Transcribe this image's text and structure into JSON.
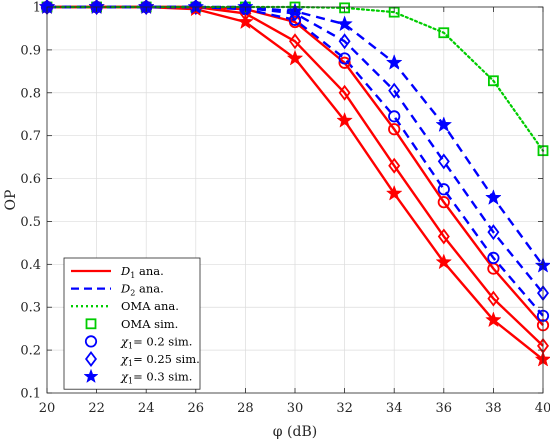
{
  "chart_data": {
    "type": "line",
    "xlabel": "φ (dB)",
    "ylabel": "OP",
    "xlim": [
      20,
      40
    ],
    "ylim": [
      0.1,
      1.0
    ],
    "xticks": [
      20,
      22,
      24,
      26,
      28,
      30,
      32,
      34,
      36,
      38,
      40
    ],
    "yticks": [
      0.1,
      0.2,
      0.3,
      0.4,
      0.5,
      0.6,
      0.7,
      0.8,
      0.9,
      1
    ],
    "ytick_labels": [
      "0.1",
      "0.2",
      "0.3",
      "0.4",
      "0.5",
      "0.6",
      "0.7",
      "0.8",
      "0.9",
      "1"
    ],
    "grid": true,
    "legend_position": "bottom-left",
    "colors": {
      "d1": "#ff0000",
      "d2": "#0000ff",
      "oma": "#00cc00"
    },
    "lines": [
      {
        "name": "D1 ana. (χ1=0.2)",
        "color": "#ff0000",
        "style": "solid",
        "x": [
          20,
          22,
          24,
          26,
          28,
          30,
          32,
          34,
          36,
          38,
          40
        ],
        "y": [
          1,
          1,
          1,
          1,
          0.995,
          0.965,
          0.87,
          0.715,
          0.545,
          0.39,
          0.258
        ]
      },
      {
        "name": "D1 ana. (χ1=0.25)",
        "color": "#ff0000",
        "style": "solid",
        "x": [
          20,
          22,
          24,
          26,
          28,
          30,
          32,
          34,
          36,
          38,
          40
        ],
        "y": [
          1,
          1,
          1,
          1,
          0.985,
          0.92,
          0.8,
          0.63,
          0.465,
          0.32,
          0.21
        ]
      },
      {
        "name": "D1 ana. (χ1=0.3)",
        "color": "#ff0000",
        "style": "solid",
        "x": [
          20,
          22,
          24,
          26,
          28,
          30,
          32,
          34,
          36,
          38,
          40
        ],
        "y": [
          1,
          1,
          1,
          0.995,
          0.965,
          0.88,
          0.735,
          0.565,
          0.405,
          0.27,
          0.178
        ]
      },
      {
        "name": "D2 ana. (χ1=0.2)",
        "color": "#0000ff",
        "style": "dashed",
        "x": [
          20,
          22,
          24,
          26,
          28,
          30,
          32,
          34,
          36,
          38,
          40
        ],
        "y": [
          1,
          1,
          1,
          1,
          0.995,
          0.97,
          0.88,
          0.745,
          0.575,
          0.415,
          0.28
        ]
      },
      {
        "name": "D2 ana. (χ1=0.25)",
        "color": "#0000ff",
        "style": "dashed",
        "x": [
          20,
          22,
          24,
          26,
          28,
          30,
          32,
          34,
          36,
          38,
          40
        ],
        "y": [
          1,
          1,
          1,
          1,
          0.998,
          0.985,
          0.92,
          0.805,
          0.64,
          0.475,
          0.333
        ]
      },
      {
        "name": "D2 ana. (χ1=0.3)",
        "color": "#0000ff",
        "style": "dashed",
        "x": [
          20,
          22,
          24,
          26,
          28,
          30,
          32,
          34,
          36,
          38,
          40
        ],
        "y": [
          1,
          1,
          1,
          1,
          1,
          0.99,
          0.96,
          0.87,
          0.725,
          0.555,
          0.397
        ]
      },
      {
        "name": "OMA ana.",
        "color": "#00cc00",
        "style": "dotted",
        "x": [
          20,
          22,
          24,
          26,
          28,
          30,
          32,
          34,
          36,
          38,
          40
        ],
        "y": [
          1,
          1,
          1,
          1,
          1,
          1,
          0.998,
          0.988,
          0.94,
          0.828,
          0.665
        ]
      }
    ],
    "markers": [
      {
        "name": "OMA sim.",
        "shape": "square",
        "color": "#00cc00",
        "x": [
          20,
          22,
          24,
          26,
          28,
          30,
          32,
          34,
          36,
          38,
          40
        ],
        "y": [
          1,
          1,
          1,
          1,
          1,
          1,
          0.998,
          0.988,
          0.94,
          0.828,
          0.665
        ]
      },
      {
        "name": "χ1= 0.2 sim.",
        "shape": "circle",
        "color": "#ff0000",
        "x": [
          20,
          22,
          24,
          26,
          28,
          30,
          32,
          34,
          36,
          38,
          40
        ],
        "y": [
          1,
          1,
          1,
          1,
          0.995,
          0.965,
          0.87,
          0.715,
          0.545,
          0.39,
          0.258
        ]
      },
      {
        "name": "χ1= 0.2 sim.",
        "shape": "circle",
        "color": "#0000ff",
        "x": [
          20,
          22,
          24,
          26,
          28,
          30,
          32,
          34,
          36,
          38,
          40
        ],
        "y": [
          1,
          1,
          1,
          1,
          0.995,
          0.97,
          0.88,
          0.745,
          0.575,
          0.415,
          0.28
        ]
      },
      {
        "name": "χ1= 0.25 sim.",
        "shape": "diamond",
        "color": "#ff0000",
        "x": [
          20,
          22,
          24,
          26,
          28,
          30,
          32,
          34,
          36,
          38,
          40
        ],
        "y": [
          1,
          1,
          1,
          1,
          0.985,
          0.92,
          0.8,
          0.63,
          0.465,
          0.32,
          0.21
        ]
      },
      {
        "name": "χ1= 0.25 sim.",
        "shape": "diamond",
        "color": "#0000ff",
        "x": [
          20,
          22,
          24,
          26,
          28,
          30,
          32,
          34,
          36,
          38,
          40
        ],
        "y": [
          1,
          1,
          1,
          1,
          0.998,
          0.985,
          0.92,
          0.805,
          0.64,
          0.475,
          0.333
        ]
      },
      {
        "name": "χ1= 0.3 sim.",
        "shape": "star",
        "color": "#ff0000",
        "x": [
          20,
          22,
          24,
          26,
          28,
          30,
          32,
          34,
          36,
          38,
          40
        ],
        "y": [
          1,
          1,
          1,
          0.995,
          0.965,
          0.88,
          0.735,
          0.565,
          0.405,
          0.27,
          0.178
        ]
      },
      {
        "name": "χ1= 0.3 sim.",
        "shape": "star",
        "color": "#0000ff",
        "x": [
          20,
          22,
          24,
          26,
          28,
          30,
          32,
          34,
          36,
          38,
          40
        ],
        "y": [
          1,
          1,
          1,
          1,
          1,
          0.99,
          0.96,
          0.87,
          0.725,
          0.555,
          0.397
        ]
      }
    ],
    "legend": [
      {
        "kind": "line",
        "style": "solid",
        "color": "#ff0000",
        "text_main": "D",
        "text_sub": "1",
        "text_rest": " ana."
      },
      {
        "kind": "line",
        "style": "dashed",
        "color": "#0000ff",
        "text_main": "D",
        "text_sub": "2",
        "text_rest": " ana."
      },
      {
        "kind": "line",
        "style": "dotted",
        "color": "#00cc00",
        "text_main": "OMA ana.",
        "text_sub": "",
        "text_rest": ""
      },
      {
        "kind": "marker",
        "shape": "square",
        "color": "#00cc00",
        "text_main": "OMA sim.",
        "text_sub": "",
        "text_rest": ""
      },
      {
        "kind": "marker",
        "shape": "circle",
        "color": "#0000ff",
        "text_main": "χ",
        "text_sub": "1",
        "text_rest": "= 0.2 sim."
      },
      {
        "kind": "marker",
        "shape": "diamond",
        "color": "#0000ff",
        "text_main": "χ",
        "text_sub": "1",
        "text_rest": "= 0.25 sim."
      },
      {
        "kind": "marker",
        "shape": "star",
        "color": "#0000ff",
        "text_main": "χ",
        "text_sub": "1",
        "text_rest": "= 0.3 sim."
      }
    ]
  }
}
